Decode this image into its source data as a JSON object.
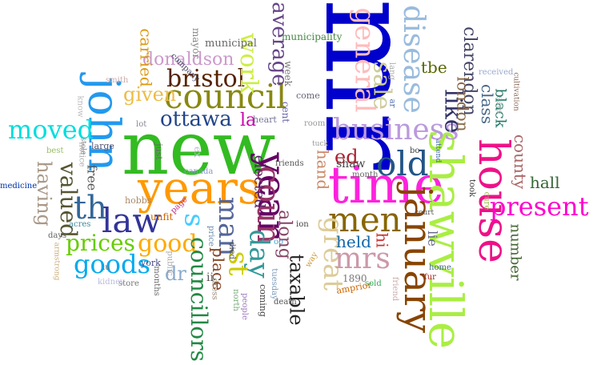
{
  "words": [
    {
      "text": "mr",
      "color": "#0000cc"
    },
    {
      "text": "new",
      "color": "#33bb22"
    },
    {
      "text": "time",
      "color": "#ff22dd"
    },
    {
      "text": "shawville",
      "color": "#aaee44"
    },
    {
      "text": "years",
      "color": "#ff9900"
    },
    {
      "text": "john",
      "color": "#2299ee"
    },
    {
      "text": "house",
      "color": "#ee1188"
    },
    {
      "text": "january",
      "color": "#884400"
    },
    {
      "text": "year",
      "color": "#660066"
    },
    {
      "text": "council",
      "color": "#888811"
    },
    {
      "text": "business",
      "color": "#bb99dd"
    },
    {
      "text": "old",
      "color": "#225588"
    },
    {
      "text": "men",
      "color": "#886600"
    },
    {
      "text": "coun",
      "color": "#993366"
    },
    {
      "text": "law",
      "color": "#333399"
    },
    {
      "text": "present",
      "color": "#ff00cc"
    },
    {
      "text": "day",
      "color": "#339999"
    },
    {
      "text": "st",
      "color": "#cccc00"
    },
    {
      "text": "man",
      "color": "#556699"
    },
    {
      "text": "th",
      "color": "#336699"
    },
    {
      "text": "s",
      "color": "#44ccff"
    },
    {
      "text": "great",
      "color": "#ddcc99"
    },
    {
      "text": "mrs",
      "color": "#cc99aa"
    },
    {
      "text": "good",
      "color": "#ffaa00"
    },
    {
      "text": "goods",
      "color": "#00aaee"
    },
    {
      "text": "prices",
      "color": "#66cc00"
    },
    {
      "text": "moved",
      "color": "#00dddd"
    },
    {
      "text": "bristol",
      "color": "#552200"
    },
    {
      "text": "ottawa",
      "color": "#224488"
    },
    {
      "text": "general",
      "color": "#ffbbbb"
    },
    {
      "text": "disease",
      "color": "#99bbdd"
    },
    {
      "text": "sale",
      "color": "#cccc99"
    },
    {
      "text": "like",
      "color": "#333366"
    },
    {
      "text": "work",
      "color": "#ccee44"
    },
    {
      "text": "average",
      "color": "#664488"
    },
    {
      "text": "donaldson",
      "color": "#cc99cc"
    },
    {
      "text": "clarendon",
      "color": "#444466"
    },
    {
      "text": "london",
      "color": "#886644"
    },
    {
      "text": "councillors",
      "color": "#228844"
    },
    {
      "text": "valued",
      "color": "#555533"
    },
    {
      "text": "having",
      "color": "#aa9988"
    },
    {
      "text": "taxable",
      "color": "#222222"
    },
    {
      "text": "along",
      "color": "#884466"
    },
    {
      "text": "given",
      "color": "#eebb44"
    },
    {
      "text": "held",
      "color": "#1166aa"
    },
    {
      "text": "county",
      "color": "#aa6666"
    },
    {
      "text": "hall",
      "color": "#336633"
    },
    {
      "text": "class",
      "color": "#446688"
    },
    {
      "text": "black",
      "color": "#227766"
    },
    {
      "text": "hand",
      "color": "#cc8866"
    },
    {
      "text": "ed",
      "color": "#aa2233"
    },
    {
      "text": "la",
      "color": "#cc00aa"
    },
    {
      "text": "hi",
      "color": "#cc3333"
    },
    {
      "text": "place",
      "color": "#884422"
    },
    {
      "text": "dr",
      "color": "#88aacc"
    },
    {
      "text": "carried",
      "color": "#dd9911"
    },
    {
      "text": "number",
      "color": "#446633"
    },
    {
      "text": "tbe",
      "color": "#556600"
    },
    {
      "text": "elected",
      "color": "#552266"
    },
    {
      "text": "shaw",
      "color": "#444444"
    },
    {
      "text": "lie",
      "color": "#666688"
    },
    {
      "text": "free",
      "color": "#555555"
    },
    {
      "text": "municipal",
      "color": "#666666"
    },
    {
      "text": "municipality",
      "color": "#448844"
    },
    {
      "text": "mayor",
      "color": "#888888"
    },
    {
      "text": "company",
      "color": "#444466"
    },
    {
      "text": "week",
      "color": "#777777"
    },
    {
      "text": "come",
      "color": "#666677"
    },
    {
      "text": "cent",
      "color": "#6666aa"
    },
    {
      "text": "heart",
      "color": "#777799"
    },
    {
      "text": "room",
      "color": "#999999"
    },
    {
      "text": "york",
      "color": "#444488"
    },
    {
      "text": "smith",
      "color": "#ccaaaa"
    },
    {
      "text": "know",
      "color": "#bbbbbb"
    },
    {
      "text": "lot",
      "color": "#888899"
    },
    {
      "text": "just",
      "color": "#666666"
    },
    {
      "text": "ex",
      "color": "#bbbbcc"
    },
    {
      "text": "large",
      "color": "#555577"
    },
    {
      "text": "notice",
      "color": "#aaaaaa"
    },
    {
      "text": "best",
      "color": "#99bb66"
    },
    {
      "text": "store",
      "color": "#777777"
    },
    {
      "text": "canada",
      "color": "#8899cc"
    },
    {
      "text": "medicine",
      "color": "#0033aa"
    },
    {
      "text": "hobbs",
      "color": "#aa8866"
    },
    {
      "text": "page",
      "color": "#bb3388"
    },
    {
      "text": "price",
      "color": "#6688aa"
    },
    {
      "text": "unfit",
      "color": "#cc6600"
    },
    {
      "text": "days",
      "color": "#666666"
    },
    {
      "text": "acres",
      "color": "#448899"
    },
    {
      "text": "armstrong",
      "color": "#ccaa77"
    },
    {
      "text": "kidney",
      "color": "#bbbbdd"
    },
    {
      "text": "public",
      "color": "#aaaaaa"
    },
    {
      "text": "months",
      "color": "#666666"
    },
    {
      "text": "north",
      "color": "#77aa77"
    },
    {
      "text": "dress",
      "color": "#998877"
    },
    {
      "text": "died",
      "color": "#555555"
    },
    {
      "text": "people",
      "color": "#9977bb"
    },
    {
      "text": "ii",
      "color": "#555555"
    },
    {
      "text": "coming",
      "color": "#444444"
    },
    {
      "text": "tuesday",
      "color": "#7799bb"
    },
    {
      "text": "death",
      "color": "#555555"
    },
    {
      "text": "1890",
      "color": "#777777"
    },
    {
      "text": "amprior",
      "color": "#cc6600"
    },
    {
      "text": "friend",
      "color": "#ccaaaa"
    },
    {
      "text": "sold",
      "color": "#33aa55"
    },
    {
      "text": "home",
      "color": "#446688"
    },
    {
      "text": "fur",
      "color": "#aa2222"
    },
    {
      "text": "way",
      "color": "#cc9933"
    },
    {
      "text": "ion",
      "color": "#444444"
    },
    {
      "text": "month",
      "color": "#666666"
    },
    {
      "text": "friends",
      "color": "#555555"
    },
    {
      "text": "bo",
      "color": "#444444"
    },
    {
      "text": "attend",
      "color": "#4466aa"
    },
    {
      "text": "court",
      "color": "#555555"
    },
    {
      "text": "cure",
      "color": "#99bb44"
    },
    {
      "text": "took",
      "color": "#333333"
    },
    {
      "text": "says",
      "color": "#bbbbbb"
    },
    {
      "text": "received",
      "color": "#99aacc"
    },
    {
      "text": "cultivation",
      "color": "#886655"
    },
    {
      "text": "lang",
      "color": "#aaaaaa"
    },
    {
      "text": "ar",
      "color": "#4466aa"
    },
    {
      "text": "oo",
      "color": "#44aadd"
    },
    {
      "text": "iu",
      "color": "#777777"
    },
    {
      "text": "stole",
      "color": "#888888"
    },
    {
      "text": "tuck",
      "color": "#999999"
    }
  ]
}
